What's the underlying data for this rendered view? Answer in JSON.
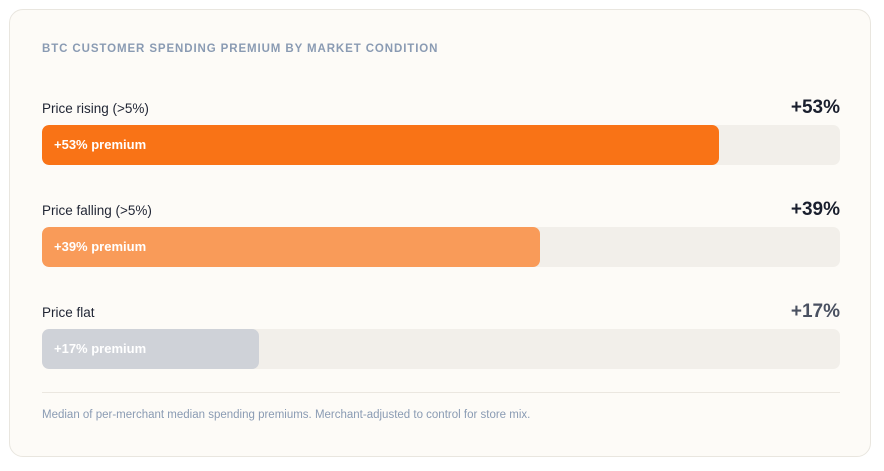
{
  "chart_data": {
    "type": "bar",
    "orientation": "horizontal",
    "title": "BTC CUSTOMER SPENDING PREMIUM BY MARKET CONDITION",
    "unit": "%",
    "xlim": [
      0,
      62.5
    ],
    "categories": [
      "Price rising (>5%)",
      "Price falling (>5%)",
      "Price flat"
    ],
    "values": [
      53,
      39,
      17
    ],
    "value_labels": [
      "+53%",
      "+39%",
      "+17%"
    ],
    "bar_labels": [
      "+53% premium",
      "+39% premium",
      "+17% premium"
    ],
    "colors": [
      "#f97316",
      "#f99b59",
      "#cfd2d8"
    ],
    "value_label_colors": [
      "#1a1f2e",
      "#1a1f2e",
      "#4a5161"
    ],
    "footnote": "Median of per-merchant median spending premiums. Merchant-adjusted to control for store mix."
  }
}
